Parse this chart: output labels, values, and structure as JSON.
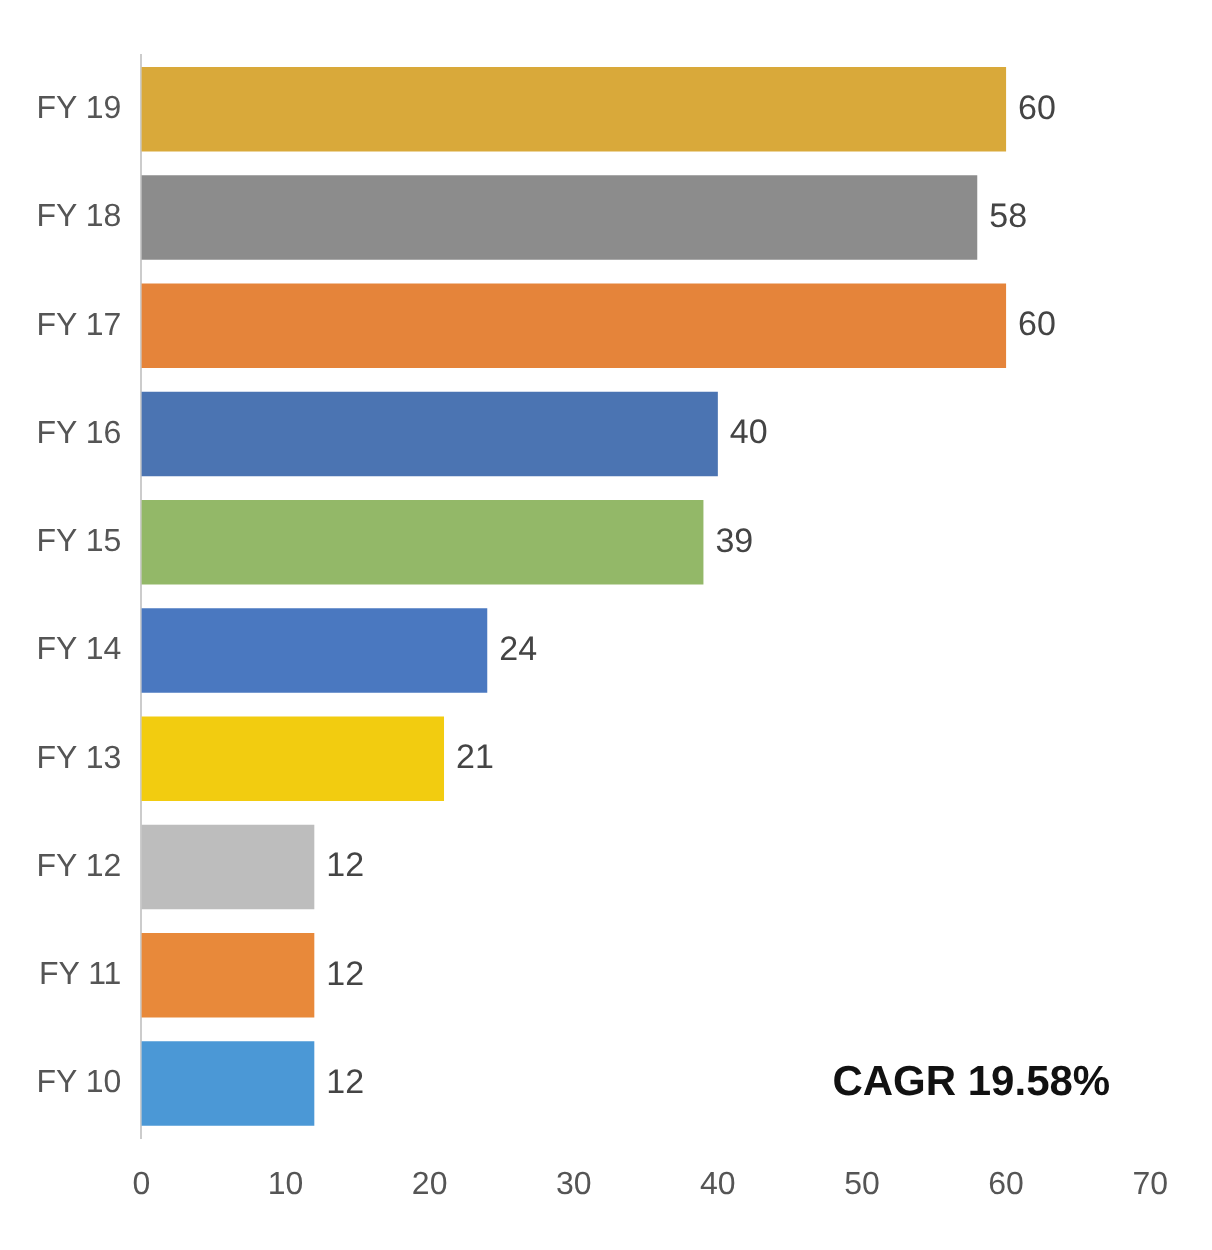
{
  "chart_data": {
    "type": "bar",
    "orientation": "horizontal",
    "categories": [
      "FY 19",
      "FY 18",
      "FY 17",
      "FY 16",
      "FY 15",
      "FY 14",
      "FY 13",
      "FY 12",
      "FY 11",
      "FY 10"
    ],
    "values": [
      60,
      58,
      60,
      40,
      39,
      24,
      21,
      12,
      12,
      12
    ],
    "colors": [
      "#d9a93a",
      "#8c8c8c",
      "#e5843a",
      "#4b74b2",
      "#93b868",
      "#4a78c0",
      "#f2cc10",
      "#bdbdbd",
      "#e8893a",
      "#4b98d6"
    ],
    "xlim": [
      0,
      70
    ],
    "xticks": [
      0,
      10,
      20,
      30,
      40,
      50,
      60,
      70
    ],
    "grid": false,
    "data_labels": true,
    "annotations": [
      "CAGR 19.58%"
    ]
  }
}
